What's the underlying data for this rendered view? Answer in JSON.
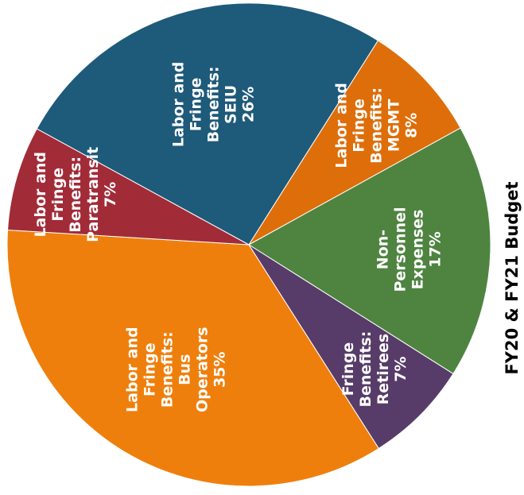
{
  "chart_data": {
    "type": "pie",
    "title": "FY20 & FY21 Budget",
    "slices": [
      {
        "label": [
          "Labor and",
          "Fringe",
          "Benefits:",
          "Bus",
          "Operators",
          "35%"
        ],
        "value": 35,
        "color": "#ef7f0c"
      },
      {
        "label": [
          "Labor and",
          "Fringe",
          "Benefits:",
          "Paratransit",
          "7%"
        ],
        "value": 7,
        "color": "#a22b38"
      },
      {
        "label": [
          "Labor and",
          "Fringe",
          "Benefits:",
          "SEIU",
          "26%"
        ],
        "value": 26,
        "color": "#1e5a7a"
      },
      {
        "label": [
          "Labor and",
          "Fringe",
          "Benefits:",
          "MGMT",
          "8%"
        ],
        "value": 8,
        "color": "#de6e0a"
      },
      {
        "label": [
          "Non-",
          "Personnel",
          "Expenses",
          "17%"
        ],
        "value": 17,
        "color": "#4e8440"
      },
      {
        "label": [
          "Fringe",
          "Benefits:",
          "Retirees",
          "7%"
        ],
        "value": 7,
        "color": "#573c69"
      }
    ]
  }
}
